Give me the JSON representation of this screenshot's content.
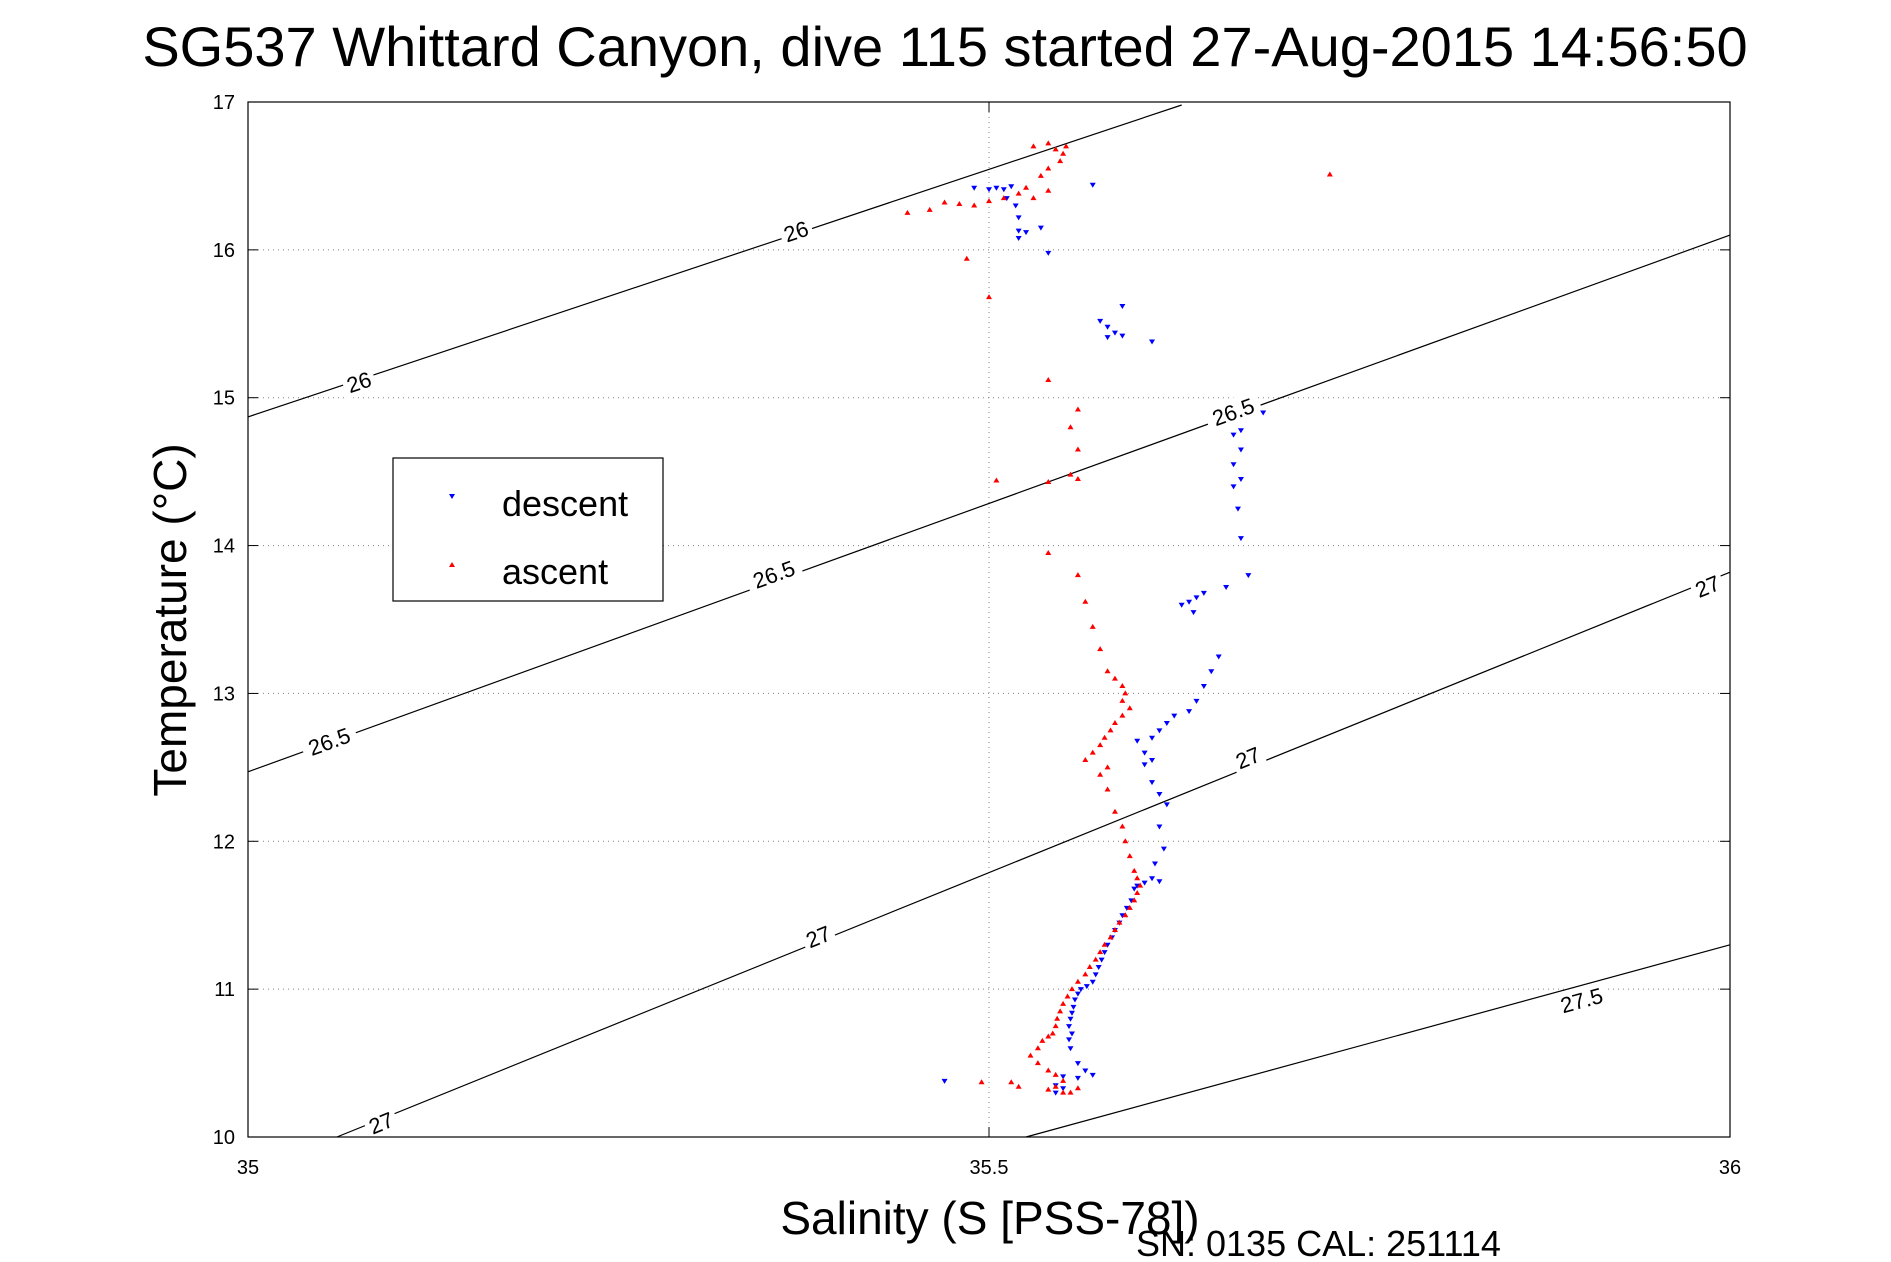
{
  "title": "SG537 Whittard Canyon, dive 115 started 27-Aug-2015 14:56:50",
  "footer": "SN: 0135  CAL: 251114",
  "chart_data": {
    "type": "scatter",
    "title": "SG537 Whittard Canyon, dive 115 started 27-Aug-2015 14:56:50",
    "xlabel": "Salinity (S [PSS-78])",
    "ylabel": "Temperature (°C)",
    "xlim": [
      35,
      36
    ],
    "ylim": [
      10,
      17
    ],
    "xticks": [
      "35",
      "35.5",
      "36"
    ],
    "yticks": [
      "10",
      "11",
      "12",
      "13",
      "14",
      "15",
      "16",
      "17"
    ],
    "grid": true,
    "legend_position": "left",
    "colors": {
      "descent": "#0000ff",
      "ascent": "#ff0000",
      "contour": "#000000"
    },
    "density_contours": [
      {
        "label": "26",
        "points": [
          [
            35.0,
            14.87
          ],
          [
            35.63,
            16.98
          ]
        ],
        "labels": [
          {
            "x": 35.075,
            "y": 15.1
          },
          {
            "x": 35.37,
            "y": 16.12
          }
        ]
      },
      {
        "label": "26.5",
        "points": [
          [
            35.0,
            12.47
          ],
          [
            36.0,
            16.1
          ]
        ],
        "labels": [
          {
            "x": 35.055,
            "y": 12.67
          },
          {
            "x": 35.355,
            "y": 13.8
          },
          {
            "x": 35.665,
            "y": 14.9
          }
        ]
      },
      {
        "label": "27",
        "points": [
          [
            35.06,
            10.0
          ],
          [
            36.0,
            13.82
          ]
        ],
        "labels": [
          {
            "x": 35.09,
            "y": 10.09
          },
          {
            "x": 35.385,
            "y": 11.35
          },
          {
            "x": 35.675,
            "y": 12.56
          },
          {
            "x": 35.985,
            "y": 13.72
          }
        ]
      },
      {
        "label": "27.5",
        "points": [
          [
            35.525,
            10.0
          ],
          [
            36.0,
            11.3
          ]
        ],
        "labels": [
          {
            "x": 35.9,
            "y": 10.92
          }
        ]
      }
    ],
    "series": [
      {
        "name": "descent",
        "marker": "triangle-down",
        "points": [
          [
            35.49,
            16.42
          ],
          [
            35.5,
            16.41
          ],
          [
            35.505,
            16.42
          ],
          [
            35.51,
            16.41
          ],
          [
            35.515,
            16.43
          ],
          [
            35.512,
            16.35
          ],
          [
            35.518,
            16.3
          ],
          [
            35.52,
            16.22
          ],
          [
            35.52,
            16.13
          ],
          [
            35.525,
            16.12
          ],
          [
            35.52,
            16.08
          ],
          [
            35.535,
            16.15
          ],
          [
            35.57,
            16.44
          ],
          [
            35.54,
            15.98
          ],
          [
            35.575,
            15.52
          ],
          [
            35.58,
            15.48
          ],
          [
            35.585,
            15.44
          ],
          [
            35.58,
            15.41
          ],
          [
            35.59,
            15.42
          ],
          [
            35.59,
            15.62
          ],
          [
            35.61,
            15.38
          ],
          [
            35.685,
            14.9
          ],
          [
            35.67,
            14.78
          ],
          [
            35.665,
            14.75
          ],
          [
            35.67,
            14.65
          ],
          [
            35.665,
            14.55
          ],
          [
            35.67,
            14.45
          ],
          [
            35.665,
            14.4
          ],
          [
            35.668,
            14.25
          ],
          [
            35.67,
            14.05
          ],
          [
            35.675,
            13.8
          ],
          [
            35.66,
            13.72
          ],
          [
            35.645,
            13.68
          ],
          [
            35.64,
            13.65
          ],
          [
            35.635,
            13.62
          ],
          [
            35.63,
            13.6
          ],
          [
            35.638,
            13.55
          ],
          [
            35.655,
            13.25
          ],
          [
            35.65,
            13.15
          ],
          [
            35.645,
            13.05
          ],
          [
            35.64,
            12.95
          ],
          [
            35.635,
            12.88
          ],
          [
            35.625,
            12.85
          ],
          [
            35.62,
            12.8
          ],
          [
            35.615,
            12.75
          ],
          [
            35.61,
            12.7
          ],
          [
            35.6,
            12.68
          ],
          [
            35.605,
            12.6
          ],
          [
            35.61,
            12.55
          ],
          [
            35.605,
            12.52
          ],
          [
            35.61,
            12.4
          ],
          [
            35.615,
            12.32
          ],
          [
            35.62,
            12.25
          ],
          [
            35.615,
            12.1
          ],
          [
            35.618,
            11.95
          ],
          [
            35.612,
            11.85
          ],
          [
            35.615,
            11.73
          ],
          [
            35.61,
            11.75
          ],
          [
            35.605,
            11.72
          ],
          [
            35.6,
            11.7
          ],
          [
            35.598,
            11.68
          ],
          [
            35.596,
            11.6
          ],
          [
            35.593,
            11.55
          ],
          [
            35.59,
            11.5
          ],
          [
            35.588,
            11.45
          ],
          [
            35.585,
            11.4
          ],
          [
            35.583,
            11.35
          ],
          [
            35.58,
            11.3
          ],
          [
            35.578,
            11.25
          ],
          [
            35.576,
            11.2
          ],
          [
            35.574,
            11.15
          ],
          [
            35.572,
            11.1
          ],
          [
            35.57,
            11.05
          ],
          [
            35.566,
            11.02
          ],
          [
            35.562,
            11.0
          ],
          [
            35.56,
            10.97
          ],
          [
            35.558,
            10.93
          ],
          [
            35.557,
            10.88
          ],
          [
            35.556,
            10.84
          ],
          [
            35.555,
            10.8
          ],
          [
            35.554,
            10.75
          ],
          [
            35.556,
            10.7
          ],
          [
            35.554,
            10.66
          ],
          [
            35.555,
            10.6
          ],
          [
            35.56,
            10.5
          ],
          [
            35.565,
            10.45
          ],
          [
            35.57,
            10.42
          ],
          [
            35.56,
            10.4
          ],
          [
            35.55,
            10.41
          ],
          [
            35.545,
            10.35
          ],
          [
            35.55,
            10.33
          ],
          [
            35.545,
            10.3
          ],
          [
            35.47,
            10.38
          ]
        ]
      },
      {
        "name": "ascent",
        "marker": "triangle-up",
        "points": [
          [
            35.53,
            16.7
          ],
          [
            35.54,
            16.72
          ],
          [
            35.545,
            16.68
          ],
          [
            35.55,
            16.65
          ],
          [
            35.552,
            16.7
          ],
          [
            35.548,
            16.6
          ],
          [
            35.54,
            16.55
          ],
          [
            35.535,
            16.5
          ],
          [
            35.525,
            16.42
          ],
          [
            35.52,
            16.38
          ],
          [
            35.51,
            16.35
          ],
          [
            35.5,
            16.33
          ],
          [
            35.49,
            16.3
          ],
          [
            35.48,
            16.31
          ],
          [
            35.47,
            16.32
          ],
          [
            35.46,
            16.27
          ],
          [
            35.445,
            16.25
          ],
          [
            35.53,
            16.35
          ],
          [
            35.54,
            16.4
          ],
          [
            35.73,
            16.51
          ],
          [
            35.485,
            15.94
          ],
          [
            35.5,
            15.68
          ],
          [
            35.54,
            15.12
          ],
          [
            35.56,
            14.92
          ],
          [
            35.555,
            14.8
          ],
          [
            35.56,
            14.65
          ],
          [
            35.555,
            14.48
          ],
          [
            35.56,
            14.45
          ],
          [
            35.54,
            14.43
          ],
          [
            35.505,
            14.44
          ],
          [
            35.54,
            13.95
          ],
          [
            35.56,
            13.8
          ],
          [
            35.565,
            13.62
          ],
          [
            35.57,
            13.45
          ],
          [
            35.575,
            13.3
          ],
          [
            35.58,
            13.15
          ],
          [
            35.585,
            13.1
          ],
          [
            35.59,
            13.05
          ],
          [
            35.592,
            13.0
          ],
          [
            35.59,
            12.95
          ],
          [
            35.595,
            12.9
          ],
          [
            35.59,
            12.85
          ],
          [
            35.585,
            12.8
          ],
          [
            35.582,
            12.75
          ],
          [
            35.578,
            12.7
          ],
          [
            35.575,
            12.65
          ],
          [
            35.57,
            12.6
          ],
          [
            35.565,
            12.55
          ],
          [
            35.58,
            12.5
          ],
          [
            35.575,
            12.45
          ],
          [
            35.58,
            12.35
          ],
          [
            35.585,
            12.2
          ],
          [
            35.59,
            12.1
          ],
          [
            35.592,
            12.0
          ],
          [
            35.595,
            11.9
          ],
          [
            35.598,
            11.8
          ],
          [
            35.6,
            11.75
          ],
          [
            35.602,
            11.7
          ],
          [
            35.6,
            11.65
          ],
          [
            35.598,
            11.6
          ],
          [
            35.595,
            11.55
          ],
          [
            35.592,
            11.5
          ],
          [
            35.588,
            11.45
          ],
          [
            35.585,
            11.4
          ],
          [
            35.582,
            11.35
          ],
          [
            35.578,
            11.3
          ],
          [
            35.575,
            11.25
          ],
          [
            35.572,
            11.2
          ],
          [
            35.568,
            11.15
          ],
          [
            35.565,
            11.1
          ],
          [
            35.56,
            11.05
          ],
          [
            35.556,
            11.0
          ],
          [
            35.553,
            10.95
          ],
          [
            35.55,
            10.9
          ],
          [
            35.548,
            10.85
          ],
          [
            35.546,
            10.8
          ],
          [
            35.545,
            10.75
          ],
          [
            35.543,
            10.7
          ],
          [
            35.54,
            10.68
          ],
          [
            35.536,
            10.65
          ],
          [
            35.533,
            10.6
          ],
          [
            35.528,
            10.55
          ],
          [
            35.533,
            10.5
          ],
          [
            35.54,
            10.45
          ],
          [
            35.545,
            10.42
          ],
          [
            35.55,
            10.38
          ],
          [
            35.545,
            10.34
          ],
          [
            35.54,
            10.32
          ],
          [
            35.55,
            10.3
          ],
          [
            35.555,
            10.3
          ],
          [
            35.56,
            10.33
          ],
          [
            35.52,
            10.34
          ],
          [
            35.495,
            10.37
          ],
          [
            35.515,
            10.37
          ]
        ]
      }
    ]
  }
}
